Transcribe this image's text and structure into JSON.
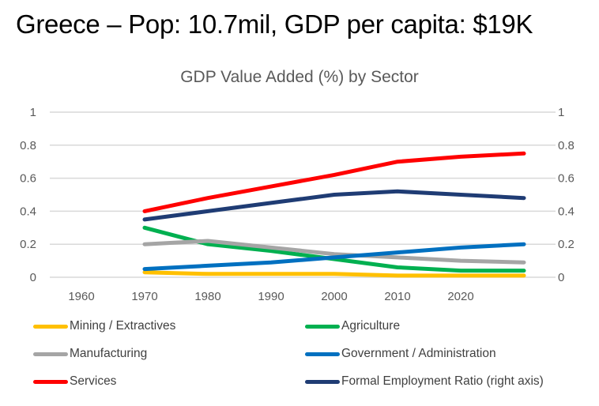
{
  "page": {
    "title": "Greece – Pop: 10.7mil, GDP per capita:  $19K"
  },
  "chart_data": {
    "type": "line",
    "title": "GDP Value Added (%) by Sector",
    "xlabel": "",
    "ylabel": "",
    "categories": [
      "1960",
      "1970",
      "1980",
      "1990",
      "2000",
      "2010",
      "2020",
      ""
    ],
    "ylim": [
      0,
      1
    ],
    "y_ticks": [
      "0",
      "0.2",
      "0.4",
      "0.6",
      "0.8",
      "1"
    ],
    "y2lim": [
      0,
      1
    ],
    "y2_ticks": [
      "0",
      "0.2",
      "0.4",
      "0.6",
      "0.8",
      "1"
    ],
    "grid": true,
    "legend_position": "bottom",
    "series": [
      {
        "name": "Mining / Extractives",
        "color": "#FFC000",
        "axis": "left",
        "values": [
          null,
          0.03,
          0.02,
          0.02,
          0.02,
          0.01,
          0.01,
          0.01
        ]
      },
      {
        "name": "Agriculture",
        "color": "#00B050",
        "axis": "left",
        "values": [
          null,
          0.3,
          0.2,
          0.16,
          0.11,
          0.06,
          0.04,
          0.04
        ]
      },
      {
        "name": "Manufacturing",
        "color": "#A5A5A5",
        "axis": "left",
        "values": [
          null,
          0.2,
          0.22,
          0.18,
          0.14,
          0.12,
          0.1,
          0.09
        ]
      },
      {
        "name": "Government / Administration",
        "color": "#0070C0",
        "axis": "left",
        "values": [
          null,
          0.05,
          0.07,
          0.09,
          0.12,
          0.15,
          0.18,
          0.2
        ]
      },
      {
        "name": "Services",
        "color": "#FF0000",
        "axis": "left",
        "values": [
          null,
          0.4,
          0.48,
          0.55,
          0.62,
          0.7,
          0.73,
          0.75
        ]
      },
      {
        "name": "Formal Employment Ratio (right axis)",
        "color": "#1F3C74",
        "axis": "right",
        "values": [
          null,
          0.35,
          0.4,
          0.45,
          0.5,
          0.52,
          0.5,
          0.48
        ]
      }
    ]
  }
}
